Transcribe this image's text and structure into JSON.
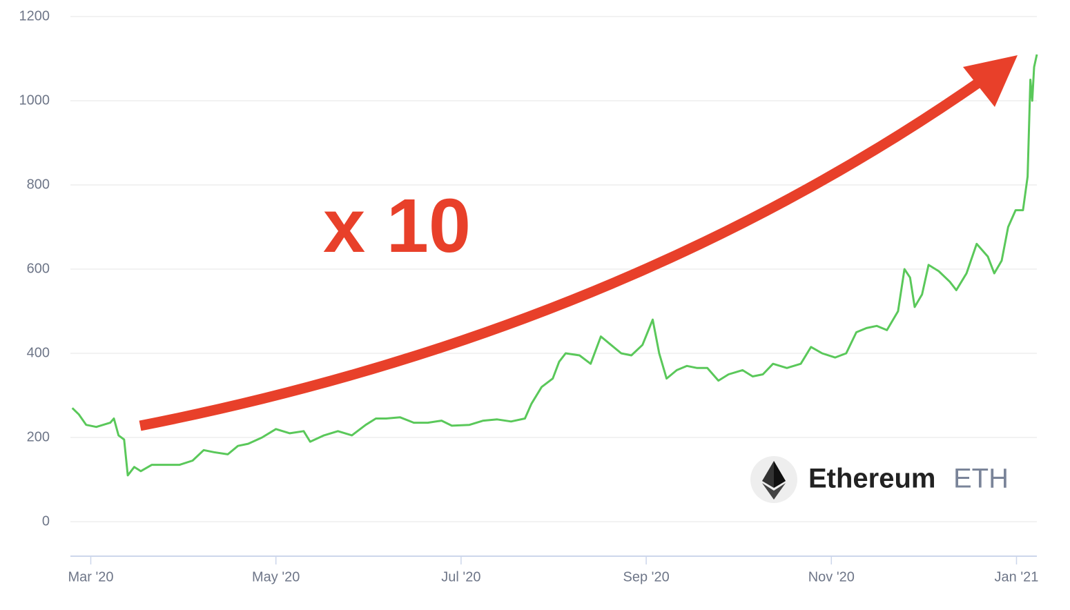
{
  "chart_data": {
    "type": "line",
    "annotation": "x 10",
    "coin_name": "Ethereum",
    "coin_ticker": "ETH",
    "color": "#5ac85a",
    "x": [
      2.8,
      2.87,
      2.95,
      3.06,
      3.21,
      3.25,
      3.3,
      3.36,
      3.4,
      3.47,
      3.54,
      3.66,
      3.81,
      3.96,
      4.1,
      4.22,
      4.33,
      4.48,
      4.59,
      4.7,
      4.85,
      5.0,
      5.15,
      5.3,
      5.37,
      5.52,
      5.67,
      5.82,
      5.97,
      6.08,
      6.19,
      6.34,
      6.49,
      6.64,
      6.79,
      6.9,
      7.09,
      7.24,
      7.39,
      7.54,
      7.69,
      7.76,
      7.87,
      7.99,
      8.06,
      8.13,
      8.28,
      8.4,
      8.51,
      8.62,
      8.73,
      8.84,
      8.96,
      9.07,
      9.14,
      9.22,
      9.33,
      9.44,
      9.55,
      9.66,
      9.78,
      9.89,
      10.04,
      10.15,
      10.26,
      10.37,
      10.52,
      10.67,
      10.78,
      10.9,
      11.04,
      11.16,
      11.27,
      11.38,
      11.49,
      11.6,
      11.72,
      11.79,
      11.85,
      11.9,
      11.98,
      12.05,
      12.16,
      12.28,
      12.35,
      12.46,
      12.57,
      12.69,
      12.76,
      12.84,
      12.91,
      12.99,
      13.07,
      13.12,
      13.15,
      13.17,
      13.19,
      13.22
    ],
    "values": [
      270,
      255,
      230,
      225,
      235,
      245,
      205,
      195,
      110,
      130,
      120,
      135,
      135,
      135,
      145,
      170,
      165,
      160,
      180,
      185,
      200,
      220,
      210,
      215,
      190,
      205,
      215,
      205,
      230,
      245,
      245,
      248,
      235,
      235,
      240,
      228,
      230,
      240,
      243,
      238,
      245,
      280,
      320,
      340,
      380,
      400,
      395,
      375,
      440,
      420,
      400,
      395,
      420,
      480,
      400,
      340,
      360,
      370,
      365,
      365,
      335,
      350,
      360,
      345,
      350,
      375,
      365,
      375,
      415,
      400,
      390,
      400,
      450,
      460,
      465,
      455,
      500,
      600,
      580,
      510,
      540,
      610,
      595,
      570,
      550,
      590,
      660,
      630,
      590,
      620,
      700,
      740,
      740,
      820,
      1050,
      1000,
      1080,
      1110
    ],
    "xlim": [
      2.78,
      13.22
    ],
    "xticks": [
      {
        "value": 3,
        "label": "Mar '20"
      },
      {
        "value": 5,
        "label": "May '20"
      },
      {
        "value": 7,
        "label": "Jul '20"
      },
      {
        "value": 9,
        "label": "Sep '20"
      },
      {
        "value": 11,
        "label": "Nov '20"
      },
      {
        "value": 13,
        "label": "Jan '21"
      }
    ],
    "ylim": [
      -82,
      1200
    ],
    "yticks": [
      0,
      200,
      400,
      600,
      800,
      1000,
      1200
    ],
    "grid": true
  }
}
